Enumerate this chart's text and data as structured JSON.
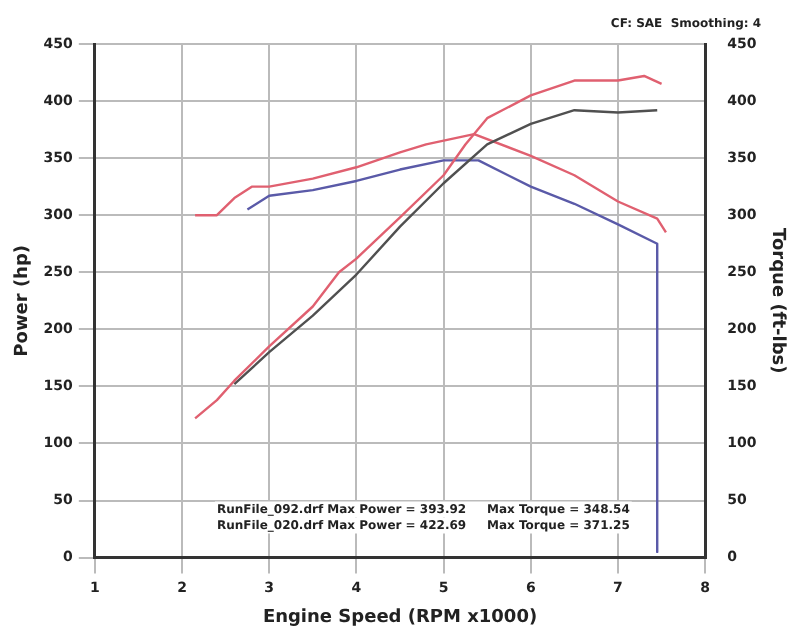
{
  "chart_data": {
    "type": "line",
    "xlabel": "Engine Speed (RPM x1000)",
    "ylabel": "Power (hp)",
    "y2label": "Torque (ft-lbs)",
    "annotations": [
      "CF: SAE  Smoothing: 4",
      "RunFile_092.drf Max Power = 393.92     Max Torque = 348.54",
      "RunFile_020.drf Max Power = 422.69     Max Torque = 371.25"
    ],
    "xlim": [
      1,
      8
    ],
    "xticks": [
      1,
      2,
      3,
      4,
      5,
      6,
      7,
      8
    ],
    "ylim": [
      0,
      450
    ],
    "yticks": [
      0,
      50,
      100,
      150,
      200,
      250,
      300,
      350,
      400,
      450
    ],
    "y2lim": [
      0,
      450
    ],
    "y2ticks": [
      0,
      50,
      100,
      150,
      200,
      250,
      300,
      350,
      400,
      450
    ],
    "grid": true,
    "legend": false,
    "marker": "none",
    "line_style": "solid",
    "series": [
      {
        "color": "#e06070",
        "x": [
          2.15,
          2.4,
          2.6,
          3,
          3.5,
          3.8,
          4,
          4.5,
          5,
          5.25,
          5.5,
          6,
          6.5,
          7,
          7.3,
          7.5
        ],
        "values": [
          122,
          138,
          155,
          185,
          220,
          250,
          262,
          298,
          335,
          362,
          385,
          405,
          418,
          418,
          422,
          415
        ]
      },
      {
        "color": "#505050",
        "x": [
          2.6,
          3,
          3.5,
          4,
          4.5,
          5,
          5.5,
          6,
          6.5,
          7,
          7.45
        ],
        "values": [
          152,
          180,
          212,
          248,
          290,
          328,
          362,
          380,
          392,
          390,
          392
        ]
      },
      {
        "color": "#e06070",
        "axis": "y2",
        "x": [
          2.15,
          2.4,
          2.6,
          2.8,
          3,
          3.5,
          4,
          4.5,
          4.8,
          5.35,
          6,
          6.5,
          7,
          7.45,
          7.55
        ],
        "values": [
          300,
          300,
          315,
          325,
          325,
          332,
          342,
          355,
          362,
          371,
          352,
          335,
          312,
          297,
          285
        ]
      },
      {
        "color": "#5a5aa8",
        "axis": "y2",
        "x": [
          2.75,
          3,
          3.5,
          4,
          4.5,
          5,
          5.4,
          6,
          6.5,
          7,
          7.45,
          7.45
        ],
        "values": [
          305,
          317,
          322,
          330,
          340,
          348,
          348,
          325,
          310,
          292,
          275,
          5
        ]
      }
    ]
  }
}
